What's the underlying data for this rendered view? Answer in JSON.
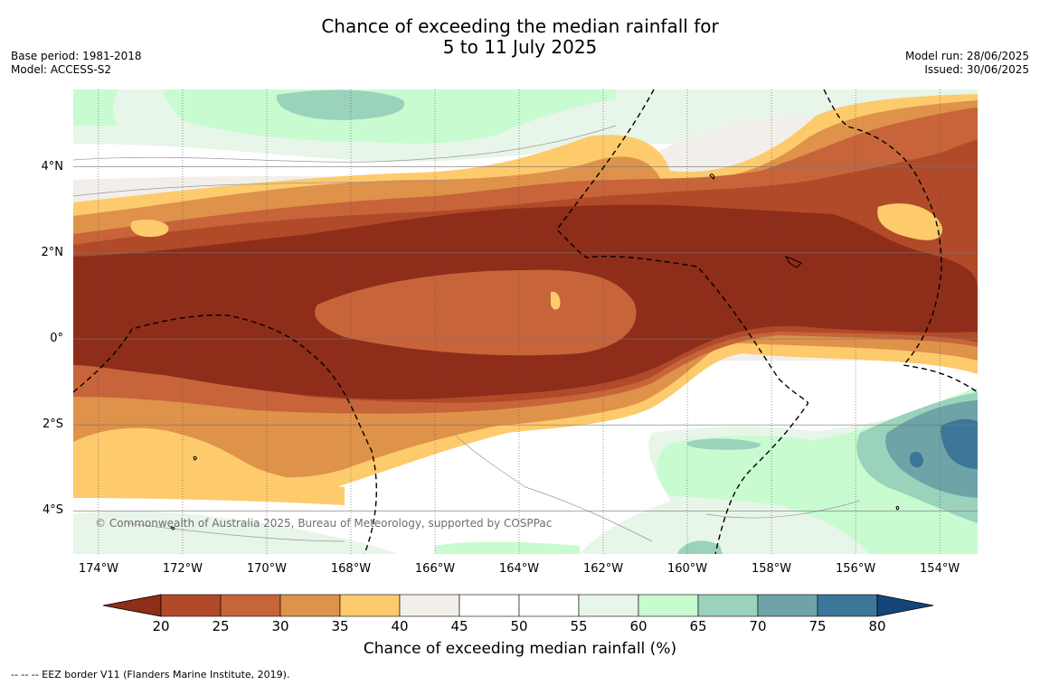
{
  "title": {
    "line1": "Chance of exceeding the median rainfall for",
    "line2": "5 to 11 July 2025"
  },
  "meta": {
    "base_period": "Base period: 1981-2018",
    "model": "Model: ACCESS-S2",
    "model_run": "Model run: 28/06/2025",
    "issued": "Issued: 30/06/2025"
  },
  "map": {
    "extent_lon": [
      -174.6,
      -153.1
    ],
    "extent_lat": [
      -5.0,
      5.8
    ],
    "lat_ticks": [
      {
        "value": 4,
        "label": "4°N"
      },
      {
        "value": 2,
        "label": "2°N"
      },
      {
        "value": 0,
        "label": "0°"
      },
      {
        "value": -2,
        "label": "2°S"
      },
      {
        "value": -4,
        "label": "4°S"
      }
    ],
    "lon_ticks": [
      {
        "value": -174,
        "label": "174°W"
      },
      {
        "value": -172,
        "label": "172°W"
      },
      {
        "value": -170,
        "label": "170°W"
      },
      {
        "value": -168,
        "label": "168°W"
      },
      {
        "value": -166,
        "label": "166°W"
      },
      {
        "value": -164,
        "label": "164°W"
      },
      {
        "value": -162,
        "label": "162°W"
      },
      {
        "value": -160,
        "label": "160°W"
      },
      {
        "value": -158,
        "label": "158°W"
      },
      {
        "value": -156,
        "label": "156°W"
      },
      {
        "value": -154,
        "label": "154°W"
      }
    ],
    "copyright": "© Commonwealth of Australia 2025, Bureau of Meteorology, supported by COSPPac",
    "legend_note": "--  --  -- EEZ border V11 (Flanders Marine Institute, 2019)."
  },
  "colorbar": {
    "label": "Chance of exceeding median rainfall (%)",
    "ticks": [
      "20",
      "25",
      "30",
      "35",
      "40",
      "45",
      "50",
      "55",
      "60",
      "65",
      "70",
      "75",
      "80"
    ],
    "under_color": "#8e2d1a",
    "over_color": "#15457a",
    "colors": [
      "#b04a28",
      "#c7643a",
      "#de924a",
      "#fdca6c",
      "#f2eee9",
      "#ffffff",
      "#ffffff",
      "#e8f5e9",
      "#c8fcd0",
      "#9ad2bc",
      "#6ea4a8",
      "#3c7799"
    ]
  }
}
